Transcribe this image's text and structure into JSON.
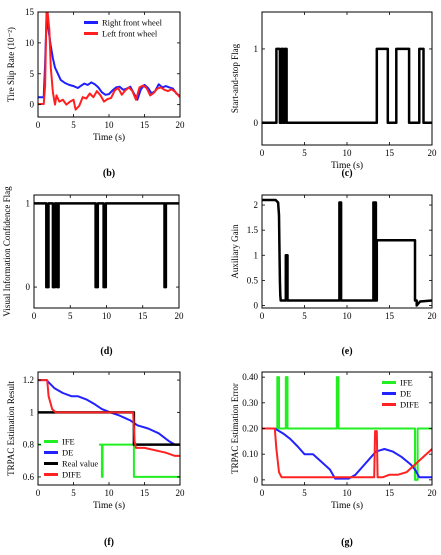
{
  "chart_data": [
    {
      "id": "b",
      "type": "line",
      "panel_label": "(b)",
      "xlabel": "Time (s)",
      "ylabel": "Tire Slip Rate (10⁻²)",
      "xlim": [
        0,
        20
      ],
      "ylim": [
        -2,
        15
      ],
      "xticks": [
        0,
        5,
        10,
        15,
        20
      ],
      "yticks": [
        0,
        5,
        10,
        15
      ],
      "legend": "top-right",
      "series": [
        {
          "name": "Right front wheel",
          "color": "#1f1fff",
          "width": 2,
          "x": [
            0,
            0.8,
            1.0,
            1.2,
            1.5,
            1.8,
            2.1,
            2.4,
            2.8,
            3.2,
            3.8,
            4.4,
            5.0,
            5.6,
            6.0,
            6.5,
            7.0,
            7.5,
            8.0,
            8.5,
            9.0,
            9.5,
            10.0,
            10.5,
            11.0,
            11.5,
            12.0,
            12.5,
            13.0,
            13.5,
            14.0,
            14.5,
            15.0,
            15.5,
            16.0,
            16.5,
            17.0,
            17.5,
            18.0,
            18.5,
            19.0,
            19.5,
            20
          ],
          "y": [
            1.2,
            1.2,
            6.5,
            14,
            12,
            9.5,
            7.5,
            6,
            5,
            4,
            3.5,
            3.2,
            3,
            2.7,
            3,
            3.4,
            3.2,
            3.6,
            3.3,
            2.8,
            2,
            1.6,
            1.7,
            2.3,
            2.8,
            2.9,
            2.4,
            2.6,
            2.9,
            1.8,
            0.8,
            2.5,
            3.2,
            2.7,
            1.8,
            2.2,
            3.3,
            2.8,
            3.0,
            2.8,
            2.6,
            1.8,
            1.4
          ]
        },
        {
          "name": "Left front wheel",
          "color": "#ff1f1f",
          "width": 2,
          "x": [
            0,
            0.8,
            1.0,
            1.2,
            1.35,
            1.6,
            1.8,
            2.1,
            2.4,
            2.6,
            3.0,
            3.5,
            4.0,
            4.5,
            5.0,
            5.3,
            5.8,
            6.3,
            6.8,
            7.3,
            7.8,
            8.3,
            8.8,
            9.3,
            9.8,
            10.3,
            10.8,
            11.3,
            11.8,
            12.3,
            12.8,
            13.3,
            13.8,
            14.3,
            14.8,
            15.3,
            15.8,
            16.3,
            16.8,
            17.3,
            17.8,
            18.3,
            18.8,
            19.3,
            19.7,
            20
          ],
          "y": [
            0.1,
            0.1,
            3,
            15,
            15,
            12,
            6,
            2,
            0,
            1.5,
            0.5,
            0.8,
            0,
            0.5,
            0.8,
            -0.8,
            -0.2,
            1.2,
            1.0,
            1.8,
            1.2,
            2.2,
            1.5,
            0.5,
            0.9,
            1.1,
            2.3,
            2.7,
            1.6,
            2.3,
            2.8,
            2.2,
            0.8,
            2.8,
            3.1,
            2.7,
            1.5,
            1.9,
            2.6,
            2.8,
            2.4,
            2.2,
            2.5,
            2.1,
            1.6,
            1.2
          ]
        }
      ]
    },
    {
      "id": "c",
      "type": "line",
      "panel_label": "(c)",
      "xlabel": "Time (s)",
      "ylabel": "Start-and-stop Flag",
      "xlim": [
        0,
        20
      ],
      "ylim": [
        -0.3,
        1.5
      ],
      "xticks": [
        0,
        5,
        10,
        15,
        20
      ],
      "yticks": [
        0,
        1
      ],
      "series": [
        {
          "name": "",
          "color": "#000000",
          "width": 2.5,
          "x": [
            0,
            1.7,
            1.7,
            2.1,
            2.1,
            2.3,
            2.3,
            2.5,
            2.5,
            2.7,
            2.7,
            2.9,
            2.9,
            13.5,
            13.5,
            14.8,
            14.8,
            15.8,
            15.8,
            17.3,
            17.3,
            18.5,
            18.5,
            19.0,
            19.0,
            20
          ],
          "y": [
            0,
            0,
            1,
            1,
            0,
            0,
            1,
            1,
            0,
            0,
            1,
            1,
            0,
            0,
            1,
            1,
            0,
            0,
            1,
            1,
            0,
            0,
            1,
            1,
            0,
            0
          ]
        }
      ]
    },
    {
      "id": "d",
      "type": "line",
      "panel_label": "(d)",
      "xlabel": "",
      "ylabel": "Visual Information Confidence Flag",
      "xlim": [
        0,
        20
      ],
      "ylim": [
        -0.25,
        1.1
      ],
      "xticks": [
        0,
        5,
        10,
        15,
        20
      ],
      "yticks": [
        0,
        1
      ],
      "series": [
        {
          "name": "",
          "color": "#000000",
          "width": 2.5,
          "x": [
            0,
            1.7,
            1.7,
            2.0,
            2.0,
            2.6,
            2.6,
            2.9,
            2.9,
            3.2,
            3.2,
            3.4,
            3.4,
            8.5,
            8.5,
            8.8,
            8.8,
            9.6,
            9.6,
            9.9,
            9.9,
            18.0,
            18.0,
            18.2,
            18.2,
            20
          ],
          "y": [
            1,
            1,
            0,
            0,
            1,
            1,
            0,
            0,
            1,
            1,
            0,
            0,
            1,
            1,
            0,
            0,
            1,
            1,
            0,
            0,
            1,
            1,
            0,
            0,
            1,
            1
          ]
        }
      ]
    },
    {
      "id": "e",
      "type": "line",
      "panel_label": "(e)",
      "xlabel": "",
      "ylabel": "Auxiliary Gain",
      "xlim": [
        0,
        20
      ],
      "ylim": [
        -0.05,
        2.2
      ],
      "xticks": [
        0,
        5,
        10,
        15,
        20
      ],
      "yticks": [
        0,
        0.5,
        1,
        1.5,
        2
      ],
      "series": [
        {
          "name": "",
          "color": "#000000",
          "width": 2.5,
          "x": [
            0,
            1.6,
            1.9,
            2.0,
            2.05,
            2.1,
            2.15,
            2.2,
            2.3,
            2.4,
            2.6,
            2.8,
            2.8,
            3.0,
            3.0,
            9.1,
            9.1,
            9.3,
            9.3,
            13.1,
            13.1,
            13.2,
            13.2,
            13.3,
            13.3,
            13.4,
            13.4,
            13.5,
            13.5,
            18.0,
            18.0,
            18.2,
            18.2,
            18.6,
            20
          ],
          "y": [
            2.1,
            2.1,
            2.05,
            1.8,
            1.2,
            0.5,
            0.2,
            0.1,
            0.1,
            0.1,
            0.1,
            0.1,
            1.0,
            1.0,
            0.1,
            0.1,
            2.05,
            2.05,
            0.1,
            0.1,
            2.05,
            2.05,
            0.1,
            0.1,
            2.05,
            2.05,
            0.1,
            0.1,
            1.3,
            1.3,
            0.1,
            0.1,
            0.0,
            0.08,
            0.1
          ]
        }
      ]
    },
    {
      "id": "f",
      "type": "line",
      "panel_label": "(f)",
      "xlabel": "Time (s)",
      "ylabel": "TRPAC Estimation Result",
      "xlim": [
        0,
        20
      ],
      "ylim": [
        0.55,
        1.25
      ],
      "xticks": [
        0,
        5,
        10,
        15,
        20
      ],
      "yticks": [
        0.6,
        0.8,
        1,
        1.2
      ],
      "legend": "bottom-left",
      "series": [
        {
          "name": "IFE",
          "color": "#22ee22",
          "width": 2,
          "x": [
            0,
            1.0,
            1.0,
            1.1,
            1.1,
            2.0,
            2.0,
            2.1,
            2.1,
            3.0,
            3.0,
            3.1,
            3.1,
            9.0,
            9.0,
            9.1,
            9.1,
            13.5,
            13.5,
            20
          ],
          "y": [
            0.8,
            0.8,
            0.6,
            0.6,
            0.8,
            0.8,
            0.6,
            0.6,
            0.8,
            0.8,
            0.6,
            0.6,
            0.8,
            0.8,
            0.6,
            0.6,
            0.8,
            0.8,
            0.6,
            0.6
          ]
        },
        {
          "name": "DE",
          "color": "#2222ff",
          "width": 2,
          "x": [
            0,
            1.2,
            2.3,
            3.5,
            4.7,
            5.6,
            6.8,
            8.0,
            9.0,
            10.2,
            11.5,
            13.0,
            14.0,
            15.5,
            17.0,
            18.5,
            19.3,
            20
          ],
          "y": [
            1.2,
            1.2,
            1.15,
            1.12,
            1.1,
            1.1,
            1.08,
            1.05,
            1.02,
            1.0,
            0.98,
            0.95,
            0.92,
            0.9,
            0.87,
            0.82,
            0.8,
            0.8
          ]
        },
        {
          "name": "Real value",
          "color": "#000000",
          "width": 2.5,
          "x": [
            0,
            13.5,
            13.5,
            20
          ],
          "y": [
            1.0,
            1.0,
            0.8,
            0.8
          ]
        },
        {
          "name": "DIFE",
          "color": "#ff2222",
          "width": 2,
          "x": [
            0,
            1.3,
            1.5,
            2.0,
            2.5,
            13.4,
            13.6,
            13.8,
            15.0,
            18.0,
            19.3,
            20
          ],
          "y": [
            1.2,
            1.2,
            1.1,
            1.02,
            1.0,
            1.0,
            0.82,
            0.78,
            0.78,
            0.75,
            0.73,
            0.73
          ]
        }
      ]
    },
    {
      "id": "g",
      "type": "line",
      "panel_label": "(g)",
      "xlabel": "Time (s)",
      "ylabel": "TRPAC Estimation Error",
      "xlim": [
        0,
        20
      ],
      "ylim": [
        -0.02,
        0.42
      ],
      "xticks": [
        0,
        5,
        10,
        15,
        20
      ],
      "yticks": [
        0,
        0.1,
        0.2,
        0.3,
        0.4
      ],
      "ytick_labels": [
        "0",
        "0.10",
        "0.20",
        "0.30",
        "0.40"
      ],
      "legend": "top-right",
      "series": [
        {
          "name": "IFE",
          "color": "#22ee22",
          "width": 2,
          "x": [
            0,
            1.8,
            1.8,
            2.0,
            2.0,
            2.8,
            2.8,
            3.0,
            3.0,
            8.8,
            8.8,
            9.0,
            9.0,
            18.0,
            18.0,
            18.3,
            18.3,
            20
          ],
          "y": [
            0.2,
            0.2,
            0.4,
            0.4,
            0.2,
            0.2,
            0.4,
            0.4,
            0.2,
            0.2,
            0.4,
            0.4,
            0.2,
            0.2,
            0.0,
            0.0,
            0.2,
            0.2
          ]
        },
        {
          "name": "DE",
          "color": "#2222ff",
          "width": 2,
          "x": [
            0,
            1.5,
            2.5,
            3.3,
            4.2,
            5.0,
            6.0,
            7.0,
            8.0,
            8.6,
            9.5,
            10.2,
            11.0,
            11.8,
            12.6,
            13.4,
            14.4,
            15.4,
            16.4,
            17.5,
            18.0,
            18.5,
            19.2,
            20
          ],
          "y": [
            0.2,
            0.2,
            0.18,
            0.16,
            0.13,
            0.1,
            0.1,
            0.07,
            0.04,
            0.005,
            0.005,
            0.005,
            0.02,
            0.05,
            0.08,
            0.11,
            0.12,
            0.11,
            0.09,
            0.06,
            0.04,
            0.01,
            0.01,
            0.01
          ]
        },
        {
          "name": "DIFE",
          "color": "#ff2222",
          "width": 2,
          "x": [
            0,
            1.5,
            1.7,
            2.0,
            2.3,
            13.2,
            13.3,
            13.5,
            13.6,
            13.8,
            14.2,
            15.0,
            16.0,
            17.0,
            18.0,
            19.0,
            20
          ],
          "y": [
            0.2,
            0.2,
            0.12,
            0.03,
            0.01,
            0.01,
            0.19,
            0.19,
            0.01,
            0.01,
            0.01,
            0.02,
            0.02,
            0.03,
            0.06,
            0.09,
            0.12
          ]
        }
      ]
    }
  ]
}
